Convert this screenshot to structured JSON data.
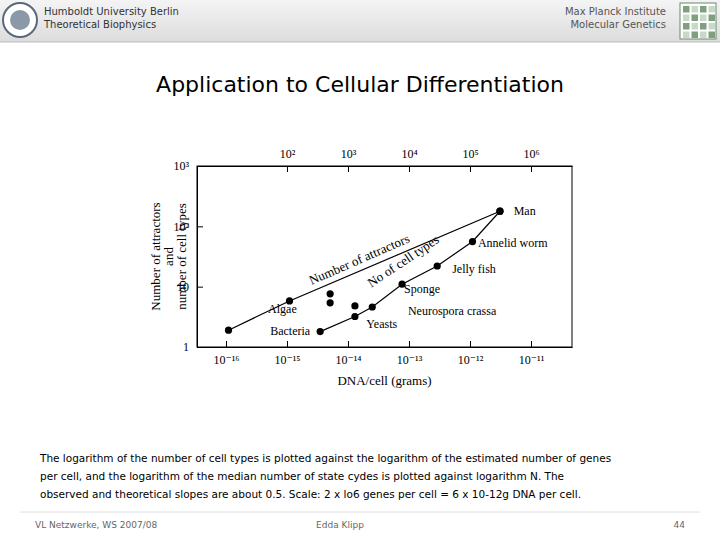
{
  "header": {
    "left": [
      "Humboldt University Berlin",
      "Theoretical Biophysics"
    ],
    "right": [
      "Max Planck Institute",
      "Molecular Genetics"
    ]
  },
  "title": "Application to Cellular Differentiation",
  "chart_data": {
    "type": "line",
    "x_label": "DNA/cell (grams)",
    "y_label": [
      "Number of attractors",
      "and",
      "number of cell types"
    ],
    "log": true,
    "grid": false,
    "xlim": [
      3.35e-17,
      4.7e-11
    ],
    "xticks": [
      {
        "value": 1e-16,
        "label": "10⁻¹⁶"
      },
      {
        "value": 1e-15,
        "label": "10⁻¹⁵"
      },
      {
        "value": 1e-14,
        "label": "10⁻¹⁴"
      },
      {
        "value": 1e-13,
        "label": "10⁻¹³"
      },
      {
        "value": 1e-12,
        "label": "10⁻¹²"
      },
      {
        "value": 1e-11,
        "label": "10⁻¹¹"
      }
    ],
    "x2lim": [
      3.35,
      4700000
    ],
    "x2ticks": [
      {
        "value": 100,
        "label": "10²"
      },
      {
        "value": 1000,
        "label": "10³"
      },
      {
        "value": 10000,
        "label": "10⁴"
      },
      {
        "value": 100000,
        "label": "10⁵"
      },
      {
        "value": 1000000,
        "label": "10⁶"
      }
    ],
    "ylim": [
      1,
      1000
    ],
    "yticks": [
      1,
      10,
      {
        "value": 100,
        "label": "10²"
      },
      {
        "value": 1000,
        "label": "10³"
      }
    ],
    "series": [
      {
        "name": "Number of attractors",
        "color": "#000000",
        "marker": "circle",
        "line_style": "solid",
        "x": [
          1.1e-16,
          1.1e-15,
          3.1e-12
        ],
        "values": [
          1.9,
          5.8,
          178
        ]
      },
      {
        "name": "No of cell types",
        "color": "#000000",
        "marker": "circle",
        "line_style": "solid",
        "x": [
          3.5e-15,
          1.3e-14,
          2.5e-14,
          7.7e-14,
          2.9e-13,
          1.1e-12,
          3.1e-12
        ],
        "values": [
          1.8,
          3.2,
          4.6,
          11,
          22,
          56,
          178
        ]
      },
      {
        "type": "scatter",
        "color": "#000000",
        "marker": "circle",
        "x": [
          5.1e-15,
          5.1e-15,
          1.3e-14
        ],
        "values": [
          7.6,
          5.4,
          4.8
        ]
      }
    ],
    "annotations": [
      {
        "text": "Man",
        "x": 5.2e-12,
        "y": 152
      },
      {
        "text": "Annelid worm",
        "x": 1.35e-12,
        "y": 45
      },
      {
        "text": "Jelly fish",
        "x": 5.1e-13,
        "y": 17
      },
      {
        "text": "Sponge",
        "x": 8.3e-14,
        "y": 7.9
      },
      {
        "text": "Neurospora crassa",
        "x": 9.6e-14,
        "y": 3.4
      },
      {
        "text": "Yeasts",
        "x": 2e-14,
        "y": 2.1
      },
      {
        "text": "Algae",
        "x": 4.9e-16,
        "y": 3.7
      },
      {
        "text": "Bacteria",
        "x": 5.3e-16,
        "y": 1.6
      }
    ]
  },
  "caption": [
    "The logarithm of the number of cell types is plotted against the logarithm of the estimated number of genes",
    "per cell, and the logarithm of the median number of state cydes is plotted against logarithm N. The",
    "observed and theoretical slopes are about 0.5. Scale: 2 x lo6 genes per cell = 6 x 10-12g DNA per cell."
  ],
  "footer": {
    "left": "VL Netzwerke, WS 2007/08",
    "center": "Edda Klipp",
    "page": 44
  }
}
